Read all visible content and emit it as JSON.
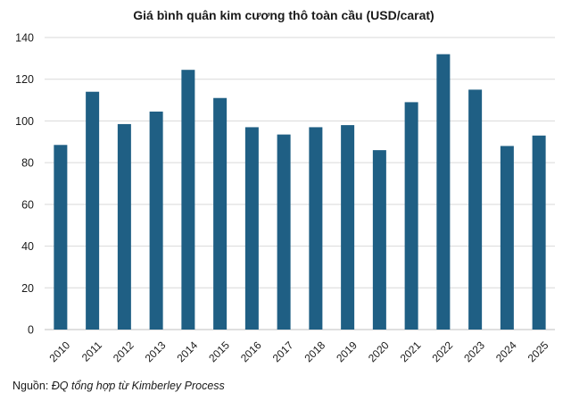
{
  "chart_data": {
    "type": "bar",
    "title": "Giá bình quân kim cương thô toàn cầu (USD/carat)",
    "categories": [
      "2010",
      "2011",
      "2012",
      "2013",
      "2014",
      "2015",
      "2016",
      "2017",
      "2018",
      "2019",
      "2020",
      "2021",
      "2022",
      "2023",
      "2024",
      "2025"
    ],
    "series": [
      {
        "values": [
          88.5,
          114,
          98.5,
          104.5,
          124.5,
          111,
          97,
          93.5,
          97,
          98,
          86,
          109,
          132,
          115,
          88,
          93
        ]
      }
    ],
    "ylim": [
      0,
      140
    ],
    "yticks": [
      0,
      20,
      40,
      60,
      80,
      100,
      120,
      140
    ],
    "grid": true,
    "bar_color": "#1f5f84",
    "xlabel": "",
    "ylabel": ""
  },
  "source": {
    "prefix": "Nguồn: ",
    "text": "ĐQ tổng hợp từ Kimberley Process"
  }
}
